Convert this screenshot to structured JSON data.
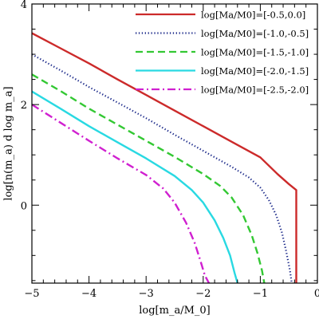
{
  "chart_data": {
    "type": "line",
    "title": "",
    "xlabel": "log[m_a/M_0]",
    "ylabel": "log[n(m_a) d log m_a]",
    "xlim": [
      -5,
      0
    ],
    "ylim": [
      -1.55,
      4
    ],
    "xticks": [
      -5,
      -4,
      -3,
      -2,
      -1,
      0
    ],
    "yticks": [
      0,
      2,
      4
    ],
    "grid": false,
    "legend_position": "top-right",
    "series": [
      {
        "name": "log[Ma/M0]=[-0.5,0.0]",
        "color": "#cc2a2a",
        "style": "solid",
        "x": [
          -5.0,
          -4.5,
          -4.0,
          -3.5,
          -3.0,
          -2.5,
          -2.0,
          -1.5,
          -1.0,
          -0.7,
          -0.5,
          -0.37,
          -0.37
        ],
        "y": [
          3.42,
          3.12,
          2.82,
          2.5,
          2.19,
          1.88,
          1.57,
          1.26,
          0.95,
          0.62,
          0.42,
          0.3,
          -1.55
        ]
      },
      {
        "name": "log[Ma/M0]=[-1.0,-0.5]",
        "color": "#1c2a8a",
        "style": "dotted",
        "x": [
          -5.0,
          -4.5,
          -4.0,
          -3.5,
          -3.0,
          -2.5,
          -2.0,
          -1.5,
          -1.2,
          -1.0,
          -0.85,
          -0.72,
          -0.62,
          -0.55,
          -0.48,
          -0.45
        ],
        "y": [
          3.0,
          2.68,
          2.35,
          2.04,
          1.73,
          1.4,
          1.08,
          0.76,
          0.55,
          0.35,
          0.1,
          -0.2,
          -0.55,
          -0.9,
          -1.3,
          -1.55
        ]
      },
      {
        "name": "log[Ma/M0]=[-1.5,-1.0]",
        "color": "#33c833",
        "style": "dashed",
        "x": [
          -5.0,
          -4.5,
          -4.0,
          -3.5,
          -3.0,
          -2.5,
          -2.0,
          -1.7,
          -1.5,
          -1.3,
          -1.15,
          -1.05,
          -0.97,
          -0.93
        ],
        "y": [
          2.6,
          2.27,
          1.92,
          1.6,
          1.28,
          0.96,
          0.62,
          0.38,
          0.15,
          -0.2,
          -0.6,
          -0.95,
          -1.3,
          -1.55
        ]
      },
      {
        "name": "log[Ma/M0]=[-2.0,-1.5]",
        "color": "#29d9e2",
        "style": "solid",
        "x": [
          -5.0,
          -4.5,
          -4.0,
          -3.5,
          -3.0,
          -2.5,
          -2.2,
          -2.0,
          -1.8,
          -1.65,
          -1.53,
          -1.45,
          -1.4
        ],
        "y": [
          2.26,
          1.92,
          1.57,
          1.25,
          0.93,
          0.58,
          0.3,
          0.05,
          -0.3,
          -0.65,
          -1.0,
          -1.35,
          -1.55
        ]
      },
      {
        "name": "log[Ma/M0]=[-2.5,-2.0]",
        "color": "#d020d0",
        "style": "dashdot",
        "x": [
          -5.0,
          -4.5,
          -4.0,
          -3.5,
          -3.0,
          -2.7,
          -2.5,
          -2.3,
          -2.15,
          -2.05,
          -1.97,
          -1.9
        ],
        "y": [
          2.0,
          1.64,
          1.28,
          0.93,
          0.6,
          0.33,
          0.05,
          -0.35,
          -0.75,
          -1.1,
          -1.4,
          -1.55
        ]
      }
    ]
  }
}
